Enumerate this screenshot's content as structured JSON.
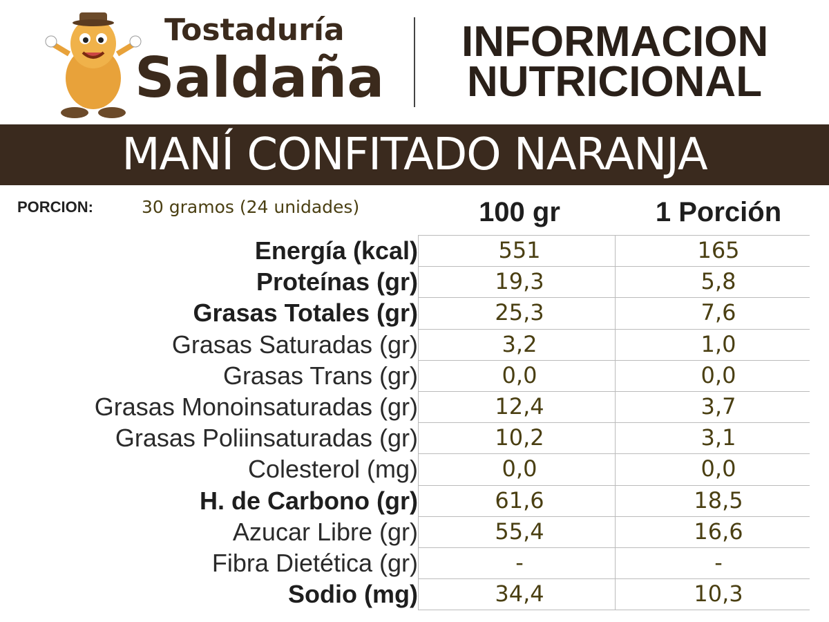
{
  "header": {
    "brand": [
      "Tostaduría",
      "Saldaña"
    ],
    "title": [
      "INFORMACION",
      "NUTRICIONAL"
    ]
  },
  "banner": "MANÍ CONFITADO NARANJA",
  "serving": {
    "label": "PORCION:",
    "value": "30 gramos (24 unidades)"
  },
  "table": {
    "columns": [
      "100 gr",
      "1 Porción"
    ],
    "rows": [
      {
        "label": "Energía (kcal)",
        "values": [
          "551",
          "165"
        ],
        "bold": true
      },
      {
        "label": "Proteínas (gr)",
        "values": [
          "19,3",
          "5,8"
        ],
        "bold": true
      },
      {
        "label": "Grasas Totales (gr)",
        "values": [
          "25,3",
          "7,6"
        ],
        "bold": true
      },
      {
        "label": "Grasas Saturadas (gr)",
        "values": [
          "3,2",
          "1,0"
        ],
        "bold": false
      },
      {
        "label": "Grasas Trans (gr)",
        "values": [
          "0,0",
          "0,0"
        ],
        "bold": false
      },
      {
        "label": "Grasas Monoinsaturadas (gr)",
        "values": [
          "12,4",
          "3,7"
        ],
        "bold": false
      },
      {
        "label": "Grasas Poliinsaturadas (gr)",
        "values": [
          "10,2",
          "3,1"
        ],
        "bold": false
      },
      {
        "label": "Colesterol (mg)",
        "values": [
          "0,0",
          "0,0"
        ],
        "bold": false
      },
      {
        "label": "H. de Carbono (gr)",
        "values": [
          "61,6",
          "18,5"
        ],
        "bold": true
      },
      {
        "label": "Azucar Libre (gr)",
        "values": [
          "55,4",
          "16,6"
        ],
        "bold": false
      },
      {
        "label": "Fibra Dietética (gr)",
        "values": [
          "-",
          "-"
        ],
        "bold": false
      },
      {
        "label": "Sodio (mg)",
        "values": [
          "34,4",
          "10,3"
        ],
        "bold": true
      }
    ]
  }
}
